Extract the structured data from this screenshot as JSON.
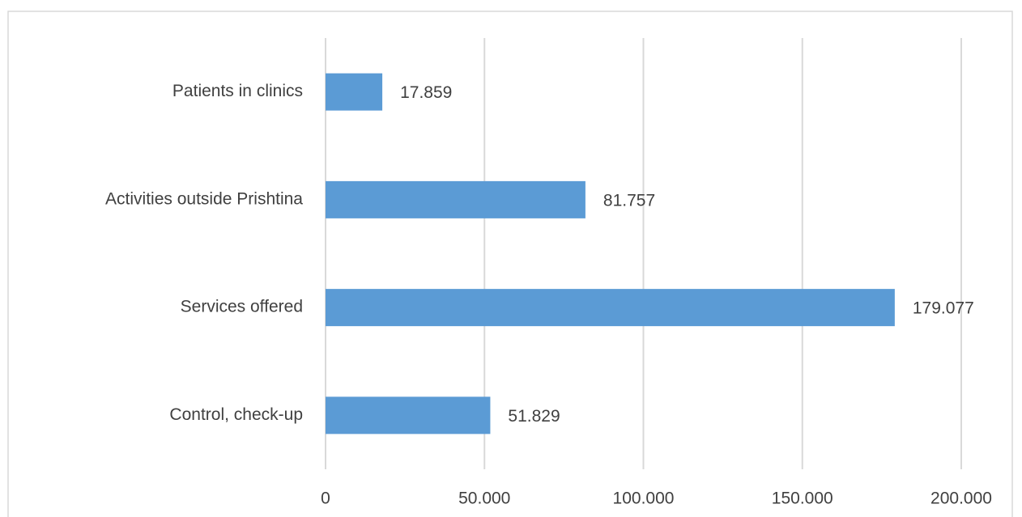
{
  "chart_data": {
    "type": "bar",
    "orientation": "horizontal",
    "categories": [
      "Patients in clinics",
      "Activities outside Prishtina",
      "Services offered",
      "Control, check-up"
    ],
    "values": [
      17859,
      81757,
      179077,
      51829
    ],
    "value_labels": [
      "17.859",
      "81.757",
      "179.077",
      "51.829"
    ],
    "color": "#5b9bd5",
    "xlim": [
      0,
      200000
    ],
    "xticks": [
      0,
      {
        "value": 50000,
        "label": "50.000"
      },
      {
        "value": 100000,
        "label": "100.000"
      },
      {
        "value": 150000,
        "label": "150.000"
      },
      {
        "value": 200000,
        "label": "200.000"
      }
    ],
    "grid": true
  }
}
